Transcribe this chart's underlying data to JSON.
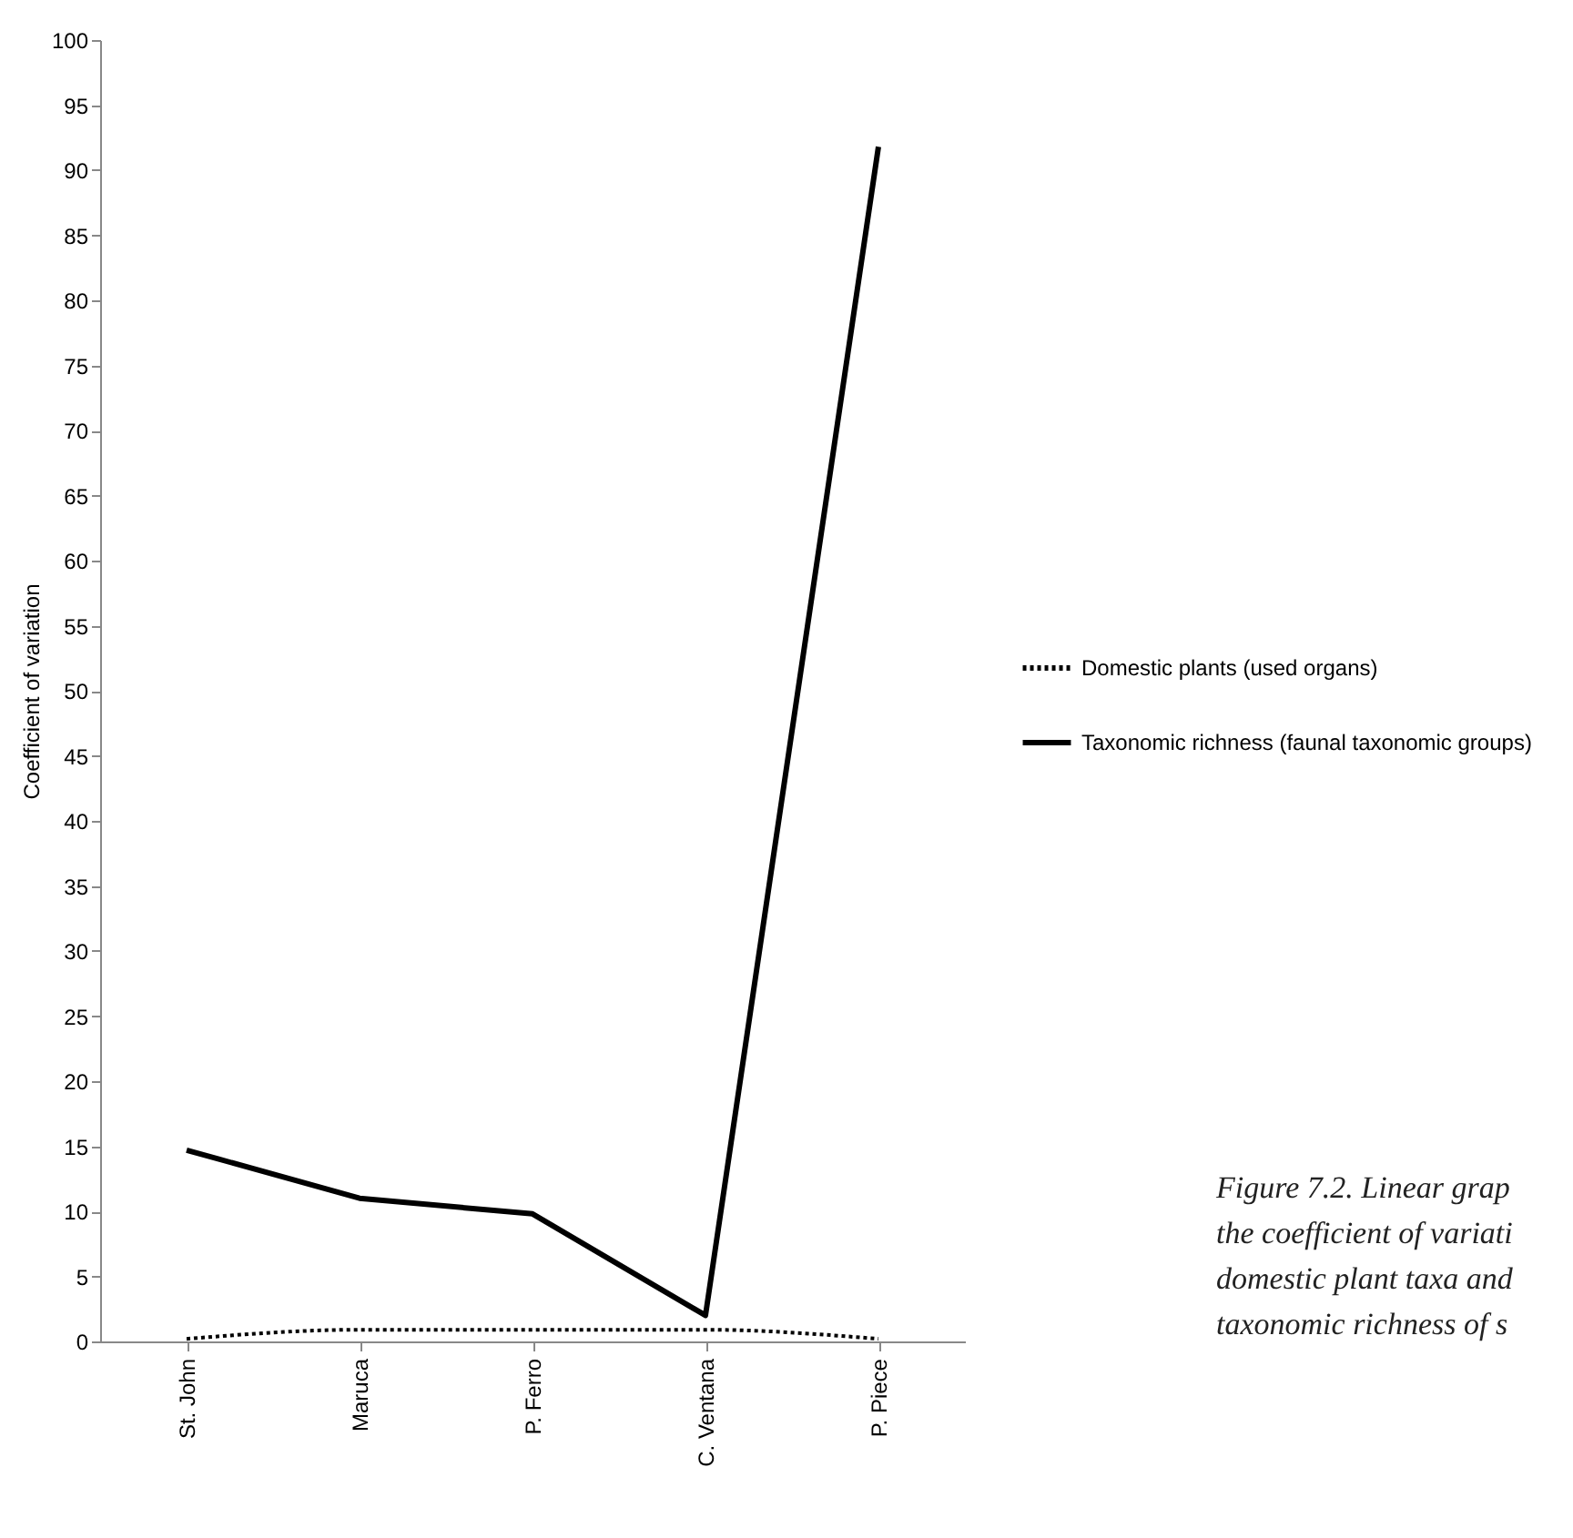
{
  "chart_data": {
    "type": "line",
    "ylabel": "Coefficient of variation",
    "categories": [
      "St. John",
      "Maruca",
      "P. Ferro",
      "C. Ventana",
      "P. Piece"
    ],
    "series": [
      {
        "name": "Domestic plants (used organs)",
        "color": "#000000",
        "line_style": "dotted",
        "values": [
          0.2,
          0.9,
          0.9,
          0.9,
          0.2
        ]
      },
      {
        "name": "Taxonomic richness (faunal taxonomic groups)",
        "color": "#000000",
        "line_style": "solid",
        "values": [
          14.7,
          11,
          9.8,
          2,
          91.8
        ]
      }
    ],
    "ylim": [
      0,
      100
    ],
    "yticks": [
      0,
      5,
      10,
      15,
      20,
      25,
      30,
      35,
      40,
      45,
      50,
      55,
      60,
      65,
      70,
      75,
      80,
      85,
      90,
      95,
      100
    ],
    "grid": false,
    "legend": "right",
    "annotations": [
      "Figure 7.2. Linear grap\nthe coefficient of variati\ndomestic plant taxa and\ntaxonomic richness of s"
    ]
  }
}
